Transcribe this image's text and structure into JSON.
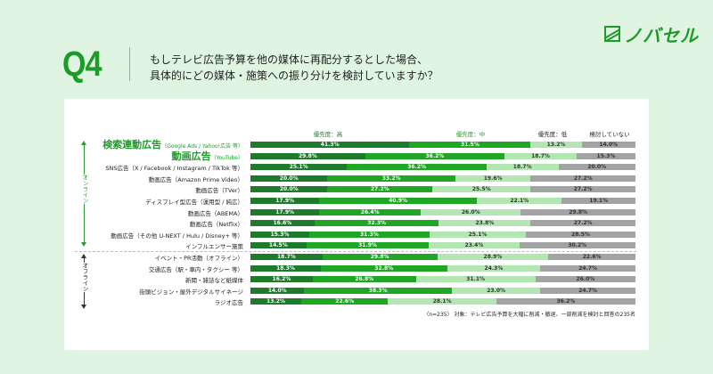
{
  "brand": {
    "logo_icon": "nobasel-logo-icon",
    "name": "ノバセル"
  },
  "question": {
    "number": "Q4",
    "line1": "もしテレビ広告予算を他の媒体に再配分するとした場合、",
    "line2": "具体的にどの媒体・施策への振り分けを検討していますか？"
  },
  "colors": {
    "background": "#e0f4e2",
    "accent": "#1d9b2a",
    "high": "#1e7b2c",
    "mid": "#1fa624",
    "low": "#b3e6b3",
    "none": "#a3a3a3"
  },
  "groups": {
    "online": "オンライン",
    "offline": "オフライン"
  },
  "note": "（n=235） 対象：テレビ広告予算を大幅に削減・撤退、一部削減を検討と回答の235名",
  "chart_data": {
    "type": "bar",
    "orientation": "horizontal-stacked-100",
    "title": "もしテレビ広告予算を他の媒体に再配分するとした場合、具体的にどの媒体・施策への振り分けを検討していますか？",
    "xlim": [
      0,
      100
    ],
    "unit": "%",
    "legend": [
      "優先度：高",
      "優先度：中",
      "優先度：低",
      "検討していない"
    ],
    "legend_placement": "top",
    "categories": [
      {
        "main": "検索連動広告",
        "sub": "（Google Ads / Yahoo!広告 等）",
        "group": "online",
        "emphasis": true
      },
      {
        "main": "動画広告",
        "sub": "（YouTube）",
        "group": "online",
        "emphasis": true
      },
      {
        "main": "SNS広告（X / Facebook / Instagram / TikTok 等）",
        "sub": "",
        "group": "online",
        "emphasis": false
      },
      {
        "main": "動画広告（Amazon Prime Video）",
        "sub": "",
        "group": "online",
        "emphasis": false
      },
      {
        "main": "動画広告（TVer）",
        "sub": "",
        "group": "online",
        "emphasis": false
      },
      {
        "main": "ディスプレイ型広告（運用型 / 純広）",
        "sub": "",
        "group": "online",
        "emphasis": false
      },
      {
        "main": "動画広告（ABEMA）",
        "sub": "",
        "group": "online",
        "emphasis": false
      },
      {
        "main": "動画広告（Netflix）",
        "sub": "",
        "group": "online",
        "emphasis": false
      },
      {
        "main": "動画広告（その他 U-NEXT / Hulu / Disney+ 等）",
        "sub": "",
        "group": "online",
        "emphasis": false
      },
      {
        "main": "インフルエンサー施策",
        "sub": "",
        "group": "online",
        "emphasis": false
      },
      {
        "main": "イベント・PR活動（オフライン）",
        "sub": "",
        "group": "offline",
        "emphasis": false
      },
      {
        "main": "交通広告（駅・車内・タクシー 等）",
        "sub": "",
        "group": "offline",
        "emphasis": false
      },
      {
        "main": "新聞・雑誌など紙媒体",
        "sub": "",
        "group": "offline",
        "emphasis": false
      },
      {
        "main": "街頭ビジョン・屋外デジタルサイネージ",
        "sub": "",
        "group": "offline",
        "emphasis": false
      },
      {
        "main": "ラジオ広告",
        "sub": "",
        "group": "offline",
        "emphasis": false
      }
    ],
    "series": [
      {
        "name": "優先度：高",
        "values": [
          41.3,
          29.8,
          25.1,
          20.0,
          20.0,
          17.9,
          17.9,
          16.6,
          15.3,
          14.5,
          18.7,
          18.3,
          16.2,
          14.0,
          13.2
        ]
      },
      {
        "name": "優先度：中",
        "values": [
          31.5,
          36.2,
          36.2,
          33.2,
          27.2,
          40.9,
          26.4,
          32.3,
          31.3,
          31.9,
          29.8,
          32.8,
          26.8,
          38.3,
          22.6
        ]
      },
      {
        "name": "優先度：低",
        "values": [
          13.2,
          18.7,
          18.7,
          19.6,
          25.5,
          22.1,
          26.0,
          23.8,
          25.1,
          23.4,
          28.9,
          24.3,
          31.1,
          23.0,
          28.1
        ]
      },
      {
        "name": "検討していない",
        "values": [
          14.0,
          15.3,
          20.0,
          27.2,
          27.2,
          19.1,
          29.8,
          27.2,
          28.5,
          30.2,
          22.6,
          24.7,
          26.0,
          24.7,
          36.2
        ]
      }
    ]
  }
}
